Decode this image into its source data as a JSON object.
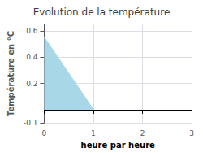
{
  "chart_data": {
    "type": "area",
    "title": "Evolution de la température",
    "xlabel": "heure par heure",
    "ylabel": "Température en °C",
    "x": [
      0,
      1
    ],
    "values": [
      0.55,
      0.0
    ],
    "color": "#a8d8e8",
    "xlim": [
      0,
      3
    ],
    "ylim": [
      -0.1,
      0.65
    ],
    "xticks": [
      0,
      1,
      2,
      3
    ],
    "yticks": [
      -0.1,
      0.2,
      0.4,
      0.6
    ],
    "grid": true
  }
}
